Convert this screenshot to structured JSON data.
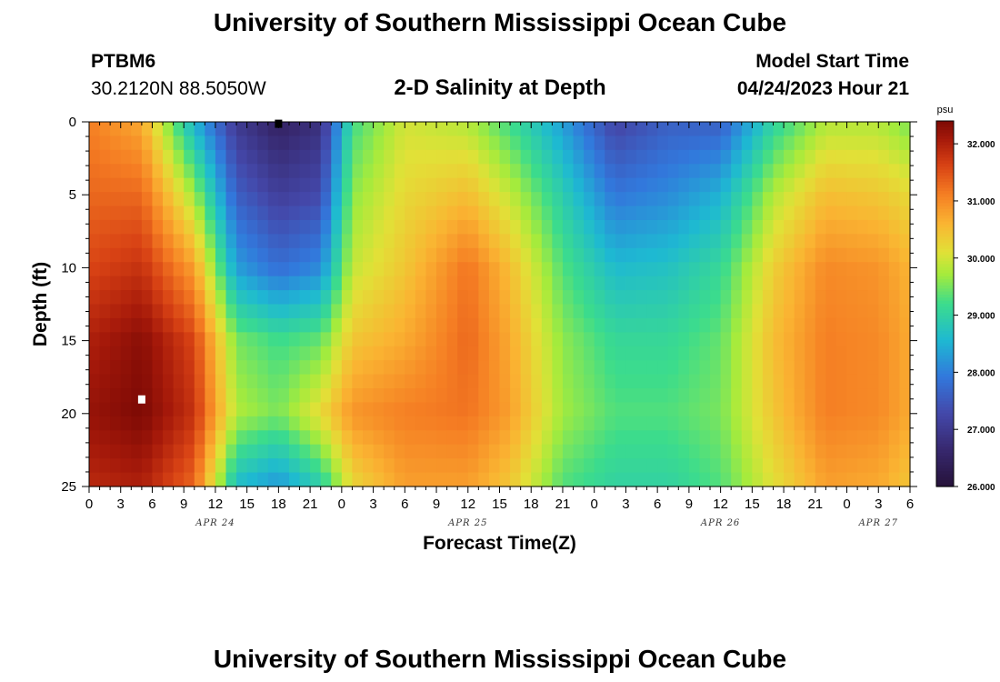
{
  "header": {
    "title": "University of Southern Mississippi Ocean Cube",
    "station": "PTBM6",
    "coords": "30.2120N  88.5050W",
    "subtitle": "2-D Salinity at Depth",
    "model_start_label": "Model Start Time",
    "model_start_value": "04/24/2023 Hour 21"
  },
  "footer": {
    "title": "University of Southern Mississippi Ocean Cube"
  },
  "chart_data": {
    "type": "heatmap",
    "title": "2-D Salinity at Depth",
    "xlabel": "Forecast Time(Z)",
    "ylabel": "Depth (ft)",
    "x_tick_labels": [
      "0",
      "3",
      "6",
      "9",
      "12",
      "15",
      "18",
      "21",
      "0",
      "3",
      "6",
      "9",
      "12",
      "15",
      "18",
      "21",
      "0",
      "3",
      "6",
      "9",
      "12",
      "15",
      "18",
      "21",
      "0",
      "3",
      "6"
    ],
    "x_date_labels": [
      {
        "label": "APR 24",
        "hour": 12
      },
      {
        "label": "APR 25",
        "hour": 36
      },
      {
        "label": "APR 26",
        "hour": 60
      },
      {
        "label": "APR 27",
        "hour": 75
      }
    ],
    "x_range_hours": [
      0,
      78
    ],
    "y_ticks": [
      0,
      5,
      10,
      15,
      20,
      25
    ],
    "y_range": [
      0,
      25
    ],
    "y_inverted": true,
    "colorbar": {
      "unit": "psu",
      "min": 26.0,
      "max": 32.4,
      "tick_values": [
        26.0,
        27.0,
        28.0,
        29.0,
        30.0,
        31.0,
        32.0
      ],
      "tick_labels": [
        "26.000",
        "27.000",
        "28.000",
        "29.000",
        "30.000",
        "31.000",
        "32.000"
      ]
    },
    "depth_profile_ft": [
      0,
      5,
      10,
      15,
      20,
      25
    ],
    "salinity_psu_by_time": [
      {
        "hour": 0,
        "values": [
          31.1,
          31.3,
          31.6,
          32.0,
          32.2,
          31.9
        ]
      },
      {
        "hour": 5,
        "values": [
          30.7,
          31.3,
          31.8,
          32.3,
          32.4,
          32.0
        ]
      },
      {
        "hour": 10,
        "values": [
          28.5,
          29.7,
          30.8,
          31.6,
          31.8,
          31.3
        ]
      },
      {
        "hour": 14,
        "values": [
          27.0,
          27.6,
          28.3,
          29.5,
          29.8,
          28.6
        ]
      },
      {
        "hour": 18,
        "values": [
          26.5,
          27.1,
          27.8,
          29.2,
          29.5,
          28.2
        ]
      },
      {
        "hour": 22,
        "values": [
          26.8,
          27.3,
          28.1,
          29.4,
          30.2,
          28.9
        ]
      },
      {
        "hour": 25,
        "values": [
          29.2,
          29.6,
          29.9,
          30.4,
          30.9,
          30.2
        ]
      },
      {
        "hour": 30,
        "values": [
          30.0,
          30.2,
          30.4,
          30.7,
          31.1,
          30.8
        ]
      },
      {
        "hour": 36,
        "values": [
          29.8,
          30.5,
          31.2,
          31.3,
          31.2,
          30.8
        ]
      },
      {
        "hour": 40,
        "values": [
          29.2,
          29.9,
          30.5,
          30.7,
          30.8,
          30.4
        ]
      },
      {
        "hour": 45,
        "values": [
          28.3,
          28.9,
          29.3,
          29.6,
          29.7,
          29.3
        ]
      },
      {
        "hour": 50,
        "values": [
          27.2,
          27.9,
          28.6,
          29.1,
          29.3,
          29.0
        ]
      },
      {
        "hour": 55,
        "values": [
          27.6,
          28.1,
          28.7,
          29.1,
          29.3,
          29.0
        ]
      },
      {
        "hour": 60,
        "values": [
          27.6,
          28.5,
          29.1,
          29.4,
          29.5,
          29.3
        ]
      },
      {
        "hour": 65,
        "values": [
          29.0,
          29.8,
          30.3,
          30.5,
          30.4,
          30.1
        ]
      },
      {
        "hour": 70,
        "values": [
          29.8,
          30.5,
          31.0,
          31.1,
          31.1,
          30.8
        ]
      },
      {
        "hour": 75,
        "values": [
          29.8,
          30.4,
          30.9,
          31.0,
          31.0,
          30.7
        ]
      },
      {
        "hour": 78,
        "values": [
          29.5,
          30.2,
          30.6,
          30.7,
          30.7,
          30.4
        ]
      }
    ],
    "markers": [
      {
        "hour": 18,
        "depth_ft": 0.1,
        "color": "#000000"
      },
      {
        "hour": 5,
        "depth_ft": 19.0,
        "color": "#ffffff"
      }
    ]
  }
}
